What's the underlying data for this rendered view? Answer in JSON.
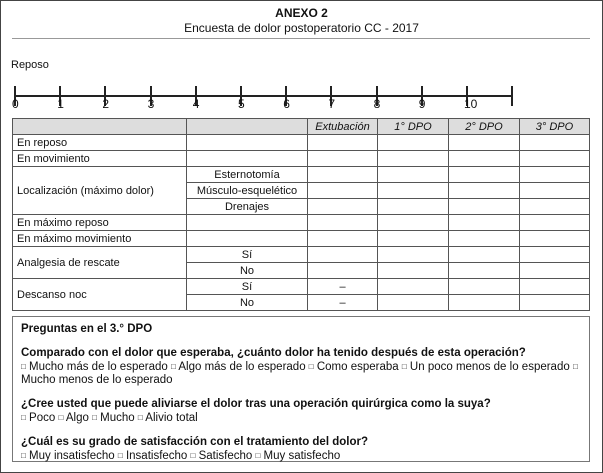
{
  "header": {
    "title": "ANEXO 2",
    "subtitle": "Encuesta de dolor postoperatorio CC - 2017"
  },
  "scale": {
    "label": "Reposo",
    "ticks": [
      "0",
      "1",
      "2",
      "3",
      "4",
      "5",
      "6",
      "7",
      "8",
      "9",
      "10"
    ]
  },
  "table": {
    "columns": [
      "",
      "",
      "Extubación",
      "1° DPO",
      "2° DPO",
      "3° DPO"
    ],
    "rows": {
      "en_reposo": "En reposo",
      "en_movimiento": "En movimiento",
      "localizacion": "Localización (máximo dolor)",
      "loc_sub": [
        "Esternotomía",
        "Músculo-esquelético",
        "Drenajes"
      ],
      "max_reposo": "En máximo reposo",
      "max_movimiento": "En máximo movimiento",
      "analgesia": "Analgesia de rescate",
      "descanso": "Descanso noc",
      "si": "Sí",
      "no": "No",
      "dash": "–"
    }
  },
  "questions": {
    "heading": "Preguntas en el 3.° DPO",
    "checkbox_icon": "□",
    "q1": "Comparado con el dolor que esperaba, ¿cuánto dolor ha tenido después de esta operación?",
    "q1_options": [
      "Mucho más de lo esperado",
      "Algo más de lo esperado",
      "Como esperaba",
      "Un poco menos de lo esperado",
      "Mucho menos de lo esperado"
    ],
    "q2": "¿Cree usted que puede aliviarse el dolor tras una operación quirúrgica como la suya?",
    "q2_options": [
      "Poco",
      "Algo",
      "Mucho",
      "Alivio total"
    ],
    "q3": "¿Cuál es su grado de satisfacción con el tratamiento del dolor?",
    "q3_options": [
      "Muy insatisfecho",
      "Insatisfecho",
      "Satisfecho",
      "Muy satisfecho"
    ]
  }
}
